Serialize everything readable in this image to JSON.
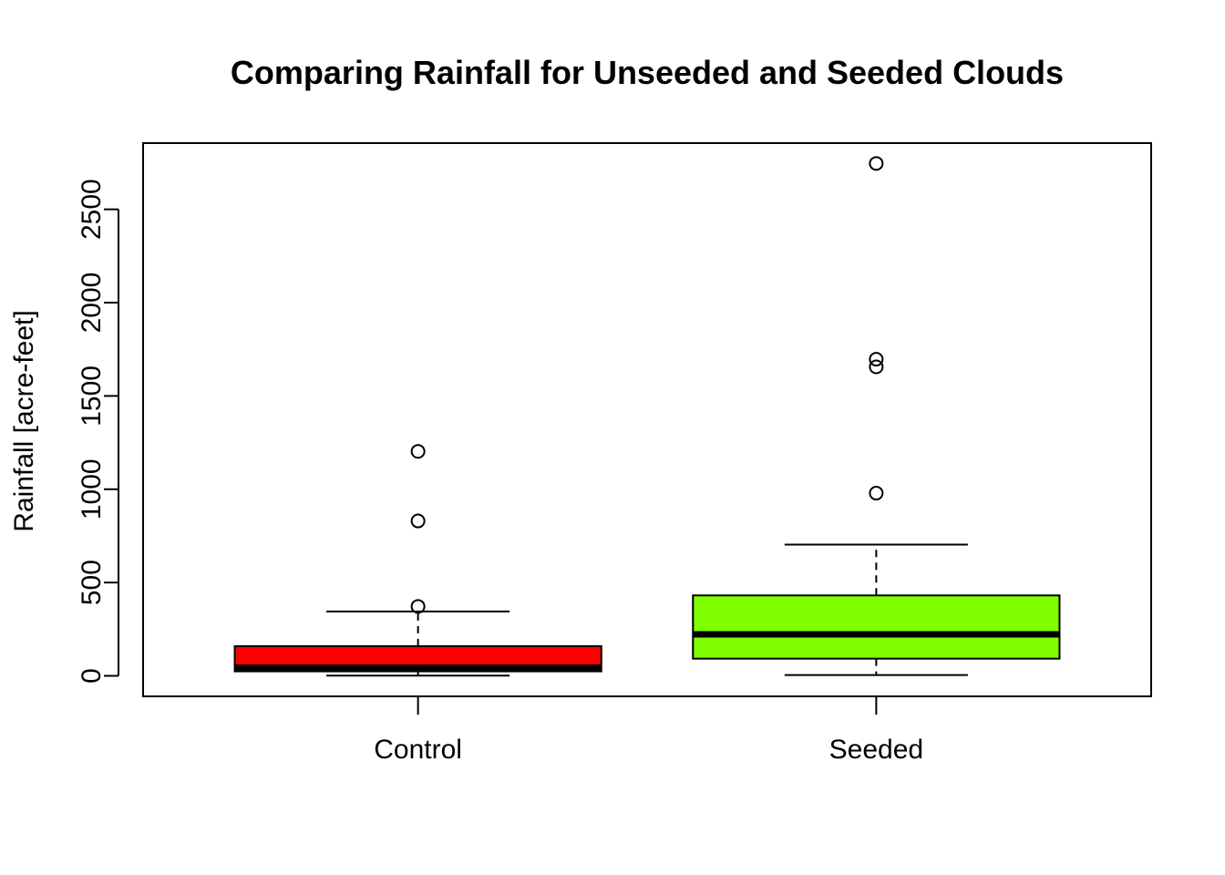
{
  "chart_data": {
    "type": "boxplot",
    "title": "Comparing Rainfall for Unseeded and Seeded Clouds",
    "xlabel": "",
    "ylabel": "Rainfall [acre-feet]",
    "ylim": [
      -110,
      2855
    ],
    "y_ticks": [
      0,
      500,
      1000,
      1500,
      2000,
      2500
    ],
    "y_tick_labels": [
      "0",
      "500",
      "1000",
      "1500",
      "2000",
      "2500"
    ],
    "categories": [
      "Control",
      "Seeded"
    ],
    "grid": false,
    "series": [
      {
        "category": "Control",
        "color": "#ff0000",
        "whisker_low": 1,
        "q1": 24,
        "median": 44,
        "q3": 159,
        "whisker_high": 345,
        "outliers": [
          372,
          830,
          1203
        ]
      },
      {
        "category": "Seeded",
        "color": "#7fff00",
        "whisker_low": 4,
        "q1": 92,
        "median": 222,
        "q3": 431,
        "whisker_high": 703,
        "outliers": [
          979,
          1656,
          1697,
          2746
        ]
      }
    ]
  }
}
